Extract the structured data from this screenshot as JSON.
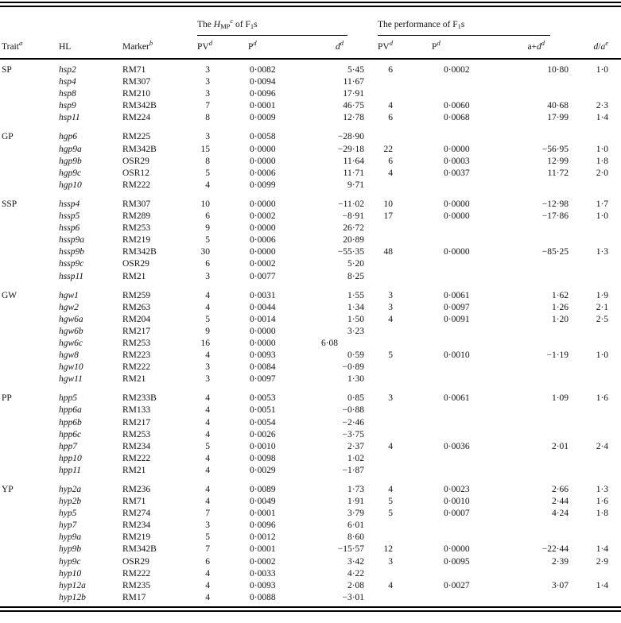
{
  "header": {
    "trait": {
      "text": "Trait",
      "sup": "a"
    },
    "hl": "HL",
    "marker": {
      "text": "Marker",
      "sup": "b"
    },
    "group1": {
      "the": "The ",
      "h": "H",
      "hsub": "MP",
      "hsup": "c",
      "of_f": " of F",
      "fsub": "1",
      "s": "s"
    },
    "group2": {
      "text": "The performance of F",
      "fsub": "1",
      "s": "s"
    },
    "pv": {
      "text": "PV",
      "sup": "d"
    },
    "p": {
      "text": "P",
      "sup": "d"
    },
    "d": {
      "text": "d",
      "sup": "d"
    },
    "ad": {
      "a": "a+",
      "d": "d",
      "sup": "d"
    },
    "da": {
      "d": "d",
      "slash": "/",
      "a": "a",
      "sup": "e"
    }
  },
  "sections": [
    {
      "trait": "SP",
      "rows": [
        {
          "hl": "hsp2",
          "marker": "RM71",
          "pv1": "3",
          "p1": "0·0082",
          "d1": "5·45",
          "pv2": "6",
          "p2": "0·0002",
          "ad": "10·80",
          "da": "1·0"
        },
        {
          "hl": "hsp4",
          "marker": "RM307",
          "pv1": "3",
          "p1": "0·0094",
          "d1": "11·67",
          "pv2": "",
          "p2": "",
          "ad": "",
          "da": ""
        },
        {
          "hl": "hsp8",
          "marker": "RM210",
          "pv1": "3",
          "p1": "0·0096",
          "d1": "17·91",
          "pv2": "",
          "p2": "",
          "ad": "",
          "da": ""
        },
        {
          "hl": "hsp9",
          "marker": "RM342B",
          "pv1": "7",
          "p1": "0·0001",
          "d1": "46·75",
          "pv2": "4",
          "p2": "0·0060",
          "ad": "40·68",
          "da": "2·3"
        },
        {
          "hl": "hsp11",
          "marker": "RM224",
          "pv1": "8",
          "p1": "0·0009",
          "d1": "12·78",
          "pv2": "6",
          "p2": "0·0068",
          "ad": "17·99",
          "da": "1·4"
        }
      ]
    },
    {
      "trait": "GP",
      "rows": [
        {
          "hl": "hgp6",
          "marker": "RM225",
          "pv1": "3",
          "p1": "0·0058",
          "d1": "−28·90",
          "pv2": "",
          "p2": "",
          "ad": "",
          "da": ""
        },
        {
          "hl": "hgp9a",
          "marker": "RM342B",
          "pv1": "15",
          "p1": "0·0000",
          "d1": "−29·18",
          "pv2": "22",
          "p2": "0·0000",
          "ad": "−56·95",
          "da": "1·0"
        },
        {
          "hl": "hgp9b",
          "marker": "OSR29",
          "pv1": "8",
          "p1": "0·0000",
          "d1": "11·64",
          "pv2": "6",
          "p2": "0·0003",
          "ad": "12·99",
          "da": "1·8"
        },
        {
          "hl": "hgp9c",
          "marker": "OSR12",
          "pv1": "5",
          "p1": "0·0006",
          "d1": "11·71",
          "pv2": "4",
          "p2": "0·0037",
          "ad": "11·72",
          "da": "2·0"
        },
        {
          "hl": "hgp10",
          "marker": "RM222",
          "pv1": "4",
          "p1": "0·0099",
          "d1": "9·71",
          "pv2": "",
          "p2": "",
          "ad": "",
          "da": ""
        }
      ]
    },
    {
      "trait": "SSP",
      "rows": [
        {
          "hl": "hssp4",
          "marker": "RM307",
          "pv1": "10",
          "p1": "0·0000",
          "d1": "−11·02",
          "pv2": "10",
          "p2": "0·0000",
          "ad": "−12·98",
          "da": "1·7"
        },
        {
          "hl": "hssp5",
          "marker": "RM289",
          "pv1": "6",
          "p1": "0·0002",
          "d1": "−8·91",
          "pv2": "17",
          "p2": "0·0000",
          "ad": "−17·86",
          "da": "1·0"
        },
        {
          "hl": "hssp6",
          "marker": "RM253",
          "pv1": "9",
          "p1": "0·0000",
          "d1": "26·72",
          "pv2": "",
          "p2": "",
          "ad": "",
          "da": ""
        },
        {
          "hl": "hssp9a",
          "marker": "RM219",
          "pv1": "5",
          "p1": "0·0006",
          "d1": "20·89",
          "pv2": "",
          "p2": "",
          "ad": "",
          "da": ""
        },
        {
          "hl": "hssp9b",
          "marker": "RM342B",
          "pv1": "30",
          "p1": "0·0000",
          "d1": "−55·35",
          "pv2": "48",
          "p2": "0·0000",
          "ad": "−85·25",
          "da": "1·3"
        },
        {
          "hl": "hssp9c",
          "marker": "OSR29",
          "pv1": "6",
          "p1": "0·0002",
          "d1": "5·20",
          "pv2": "",
          "p2": "",
          "ad": "",
          "da": ""
        },
        {
          "hl": "hssp11",
          "marker": "RM21",
          "pv1": "3",
          "p1": "0·0077",
          "d1": "8·25",
          "pv2": "",
          "p2": "",
          "ad": "",
          "da": ""
        }
      ]
    },
    {
      "trait": "GW",
      "rows": [
        {
          "hl": "hgw1",
          "marker": "RM259",
          "pv1": "4",
          "p1": "0·0031",
          "d1": "1·55",
          "pv2": "3",
          "p2": "0·0061",
          "ad": "1·62",
          "da": "1·9"
        },
        {
          "hl": "hgw2",
          "marker": "RM263",
          "pv1": "4",
          "p1": "0·0044",
          "d1": "1·34",
          "pv2": "3",
          "p2": "0·0097",
          "ad": "1·26",
          "da": "2·1"
        },
        {
          "hl": "hgw6a",
          "marker": "RM204",
          "pv1": "5",
          "p1": "0·0014",
          "d1": "1·50",
          "pv2": "4",
          "p2": "0·0091",
          "ad": "1·20",
          "da": "2·5"
        },
        {
          "hl": "hgw6b",
          "marker": "RM217",
          "pv1": "9",
          "p1": "0·0000",
          "d1": "3·23",
          "pv2": "",
          "p2": "",
          "ad": "",
          "da": ""
        },
        {
          "hl": "hgw6c",
          "marker": "RM253",
          "pv1": "16",
          "p1": "0·0000",
          "d1": "6·08",
          "d1_indent": true,
          "pv2": "",
          "p2": "",
          "ad": "",
          "da": ""
        },
        {
          "hl": "hgw8",
          "marker": "RM223",
          "pv1": "4",
          "p1": "0·0093",
          "d1": "0·59",
          "pv2": "5",
          "p2": "0·0010",
          "ad": "−1·19",
          "da": "1·0"
        },
        {
          "hl": "hgw10",
          "marker": "RM222",
          "pv1": "3",
          "p1": "0·0084",
          "d1": "−0·89",
          "pv2": "",
          "p2": "",
          "ad": "",
          "da": ""
        },
        {
          "hl": "hgw11",
          "marker": "RM21",
          "pv1": "3",
          "p1": "0·0097",
          "d1": "1·30",
          "pv2": "",
          "p2": "",
          "ad": "",
          "da": ""
        }
      ]
    },
    {
      "trait": "PP",
      "rows": [
        {
          "hl": "hpp5",
          "marker": "RM233B",
          "pv1": "4",
          "p1": "0·0053",
          "d1": "0·85",
          "pv2": "3",
          "p2": "0·0061",
          "ad": "1·09",
          "da": "1·6"
        },
        {
          "hl": "hpp6a",
          "marker": "RM133",
          "pv1": "4",
          "p1": "0·0051",
          "d1": "−0·88",
          "pv2": "",
          "p2": "",
          "ad": "",
          "da": ""
        },
        {
          "hl": "hpp6b",
          "marker": "RM217",
          "pv1": "4",
          "p1": "0·0054",
          "d1": "−2·46",
          "pv2": "",
          "p2": "",
          "ad": "",
          "da": ""
        },
        {
          "hl": "hpp6c",
          "marker": "RM253",
          "pv1": "4",
          "p1": "0·0026",
          "d1": "−3·75",
          "pv2": "",
          "p2": "",
          "ad": "",
          "da": ""
        },
        {
          "hl": "hpp7",
          "marker": "RM234",
          "pv1": "5",
          "p1": "0·0010",
          "d1": "2·37",
          "pv2": "4",
          "p2": "0·0036",
          "ad": "2·01",
          "da": "2·4"
        },
        {
          "hl": "hpp10",
          "marker": "RM222",
          "pv1": "4",
          "p1": "0·0098",
          "d1": "1·02",
          "pv2": "",
          "p2": "",
          "ad": "",
          "da": ""
        },
        {
          "hl": "hpp11",
          "marker": "RM21",
          "pv1": "4",
          "p1": "0·0029",
          "d1": "−1·87",
          "pv2": "",
          "p2": "",
          "ad": "",
          "da": ""
        }
      ]
    },
    {
      "trait": "YP",
      "rows": [
        {
          "hl": "hyp2a",
          "marker": "RM236",
          "pv1": "4",
          "p1": "0·0089",
          "d1": "1·73",
          "pv2": "4",
          "p2": "0·0023",
          "ad": "2·66",
          "da": "1·3"
        },
        {
          "hl": "hyp2b",
          "marker": "RM71",
          "pv1": "4",
          "p1": "0·0049",
          "d1": "1·91",
          "pv2": "5",
          "p2": "0·0010",
          "ad": "2·44",
          "da": "1·6"
        },
        {
          "hl": "hyp5",
          "marker": "RM274",
          "pv1": "7",
          "p1": "0·0001",
          "d1": "3·79",
          "pv2": "5",
          "p2": "0·0007",
          "ad": "4·24",
          "da": "1·8"
        },
        {
          "hl": "hyp7",
          "marker": "RM234",
          "pv1": "3",
          "p1": "0·0096",
          "d1": "6·01",
          "pv2": "",
          "p2": "",
          "ad": "",
          "da": ""
        },
        {
          "hl": "hyp9a",
          "marker": "RM219",
          "pv1": "5",
          "p1": "0·0012",
          "d1": "8·60",
          "pv2": "",
          "p2": "",
          "ad": "",
          "da": ""
        },
        {
          "hl": "hyp9b",
          "marker": "RM342B",
          "pv1": "7",
          "p1": "0·0001",
          "d1": "−15·57",
          "pv2": "12",
          "p2": "0·0000",
          "ad": "−22·44",
          "da": "1·4"
        },
        {
          "hl": "hyp9c",
          "marker": "OSR29",
          "pv1": "6",
          "p1": "0·0002",
          "d1": "3·42",
          "pv2": "3",
          "p2": "0·0095",
          "ad": "2·39",
          "da": "2·9"
        },
        {
          "hl": "hyp10",
          "marker": "RM222",
          "pv1": "4",
          "p1": "0·0033",
          "d1": "4·22",
          "pv2": "",
          "p2": "",
          "ad": "",
          "da": ""
        },
        {
          "hl": "hyp12a",
          "marker": "RM235",
          "pv1": "4",
          "p1": "0·0093",
          "d1": "2·08",
          "pv2": "4",
          "p2": "0·0027",
          "ad": "3·07",
          "da": "1·4"
        },
        {
          "hl": "hyp12b",
          "marker": "RM17",
          "pv1": "4",
          "p1": "0·0088",
          "d1": "−3·01",
          "pv2": "",
          "p2": "",
          "ad": "",
          "da": ""
        }
      ]
    }
  ]
}
